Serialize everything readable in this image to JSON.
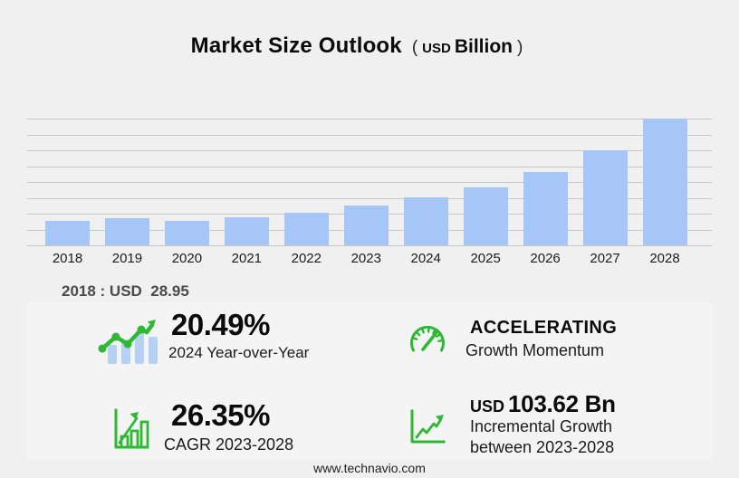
{
  "title": {
    "main": "Market Size Outlook",
    "open_paren": "(",
    "currency": "USD",
    "unit": "Billion",
    "close_paren": ")"
  },
  "annotation_2018": "2018 : USD  28.95",
  "chart_data": {
    "type": "bar",
    "title": "Market Size Outlook (USD Billion)",
    "categories": [
      "2018",
      "2019",
      "2020",
      "2021",
      "2022",
      "2023",
      "2024",
      "2025",
      "2026",
      "2027",
      "2028"
    ],
    "values": [
      28.95,
      32.3,
      29.1,
      33.4,
      38.8,
      46.66,
      56.23,
      69.0,
      87.0,
      112.8,
      150.28
    ],
    "xlabel": "",
    "ylabel": "USD Billion",
    "ylim": [
      0,
      160
    ],
    "grid": true,
    "legend": false,
    "annotations": [
      "2018 : USD  28.95"
    ]
  },
  "stats": [
    {
      "icon": "trend-bars-icon",
      "value": "20.49%",
      "label": "2024 Year-over-Year"
    },
    {
      "icon": "gauge-icon",
      "value": "ACCELERATING",
      "label": "Growth Momentum"
    },
    {
      "icon": "bar-chart-growth-icon",
      "value": "26.35%",
      "label": "CAGR 2023-2028"
    },
    {
      "icon": "axis-growth-icon",
      "value_prefix": "USD",
      "value": "103.62 Bn",
      "label": "Incremental Growth",
      "label2": "between 2023-2028"
    }
  ],
  "footer": {
    "website": "www.technavio.com"
  },
  "colors": {
    "background": "#f0f0f1",
    "panel": "#f4f4f5",
    "bar": "#a5c6f7",
    "grid_line": "#c7c7c9",
    "accent_green": "#2eb834",
    "icon_bar_blue": "#b5d2f3",
    "text_dark": "#0b0b0b",
    "text_gray": "#4a4a4a"
  }
}
